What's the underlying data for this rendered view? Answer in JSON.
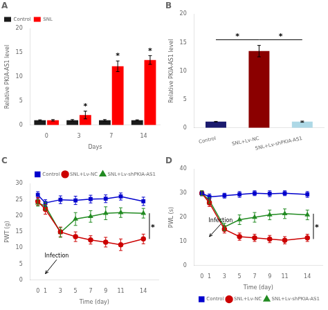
{
  "chart_data": [
    {
      "type": "bar",
      "title": "A",
      "categories": [
        "0",
        "3",
        "7",
        "14"
      ],
      "xlabel": "Days",
      "ylabel": "Relative PKIA-AS1 level",
      "ylim": [
        0,
        20
      ],
      "yticks": [
        0,
        5,
        10,
        15,
        20
      ],
      "grid": false,
      "legend": "upper left",
      "series": [
        {
          "name": "Control",
          "color": "#1a1a1a",
          "values": [
            1.0,
            1.0,
            1.0,
            1.0
          ],
          "errors": [
            0.1,
            0.15,
            0.15,
            0.1
          ]
        },
        {
          "name": "SNL",
          "color": "#ff0000",
          "values": [
            1.0,
            2.1,
            12.2,
            13.5
          ],
          "errors": [
            0.15,
            0.8,
            1.1,
            0.9
          ]
        }
      ],
      "annotations": [
        {
          "text": "*",
          "category": "3",
          "series": "SNL"
        },
        {
          "text": "*",
          "category": "7",
          "series": "SNL"
        },
        {
          "text": "*",
          "category": "14",
          "series": "SNL"
        }
      ]
    },
    {
      "type": "bar",
      "title": "B",
      "categories": [
        "Control",
        "SNL+Lv-NC",
        "SNL+Lv-shPKIA-AS1"
      ],
      "values": [
        1.1,
        13.5,
        1.1
      ],
      "errors": [
        0.05,
        1.0,
        0.1
      ],
      "colors": [
        "#1a1a6e",
        "#8b0000",
        "#add8e6"
      ],
      "ylabel": "Relative PKIA-AS1 level",
      "ylim": [
        0,
        20
      ],
      "yticks": [
        0,
        5,
        10,
        15,
        20
      ],
      "grid": false,
      "annotations": [
        {
          "text": "*",
          "from": "Control",
          "to": "SNL+Lv-NC",
          "y": 15.5
        },
        {
          "text": "*",
          "from": "SNL+Lv-NC",
          "to": "SNL+Lv-shPKIA-AS1",
          "y": 15.5
        }
      ]
    },
    {
      "type": "line",
      "title": "C",
      "x": [
        0,
        1,
        3,
        5,
        7,
        9,
        11,
        14
      ],
      "xlabel": "Time (day)",
      "ylabel": "PWT (g)",
      "xlim": [
        -1,
        16
      ],
      "xticks": [
        0,
        1,
        3,
        5,
        7,
        9,
        11,
        14
      ],
      "ylim": [
        0,
        30
      ],
      "yticks": [
        0,
        5,
        10,
        15,
        20,
        25,
        30
      ],
      "grid": false,
      "legend": "upper right",
      "series": [
        {
          "name": "Control",
          "color": "#0000cd",
          "marker": "square",
          "values": [
            26.5,
            24.0,
            25.0,
            24.8,
            25.2,
            25.3,
            26.0,
            24.5
          ],
          "errors": [
            1.0,
            1.0,
            1.2,
            1.3,
            1.2,
            1.2,
            1.1,
            1.3
          ]
        },
        {
          "name": "SNL+Lv-NC",
          "color": "#cc0000",
          "marker": "circle",
          "values": [
            24.5,
            22.0,
            15.0,
            13.5,
            12.5,
            11.8,
            11.0,
            12.8
          ],
          "errors": [
            1.2,
            1.5,
            1.5,
            1.5,
            1.3,
            1.5,
            1.8,
            1.5
          ]
        },
        {
          "name": "SNL+Lv-shPKIA-AS1",
          "color": "#228b22",
          "marker": "triangle",
          "values": [
            24.0,
            23.0,
            14.8,
            19.0,
            19.8,
            20.8,
            21.0,
            20.8
          ],
          "errors": [
            1.0,
            1.2,
            1.5,
            2.0,
            1.8,
            2.0,
            1.5,
            1.5
          ]
        }
      ],
      "annotations": [
        {
          "text": "Infection",
          "x": 2.5,
          "y": 7,
          "arrow_to": [
            1,
            2
          ]
        },
        {
          "text": "*",
          "x": 14.8,
          "y_from": 12.8,
          "y_to": 20.8
        }
      ]
    },
    {
      "type": "line",
      "title": "D",
      "x": [
        0,
        1,
        3,
        5,
        7,
        9,
        11,
        14
      ],
      "xlabel": "Time (day)",
      "ylabel": "PWL (s)",
      "xlim": [
        -1,
        16
      ],
      "xticks": [
        0,
        1,
        3,
        5,
        7,
        9,
        11,
        14
      ],
      "ylim": [
        0,
        40
      ],
      "yticks": [
        0,
        10,
        20,
        30,
        40
      ],
      "grid": false,
      "legend": "lower right",
      "series": [
        {
          "name": "Control",
          "color": "#0000cd",
          "marker": "square",
          "values": [
            30.0,
            28.5,
            29.0,
            29.5,
            30.0,
            29.8,
            30.0,
            29.5
          ],
          "errors": [
            1.0,
            1.2,
            1.0,
            1.2,
            1.0,
            1.2,
            1.0,
            1.2
          ]
        },
        {
          "name": "SNL+Lv-NC",
          "color": "#cc0000",
          "marker": "circle",
          "values": [
            30.0,
            26.0,
            15.0,
            12.0,
            11.5,
            11.0,
            10.5,
            11.5
          ],
          "errors": [
            1.0,
            1.5,
            1.5,
            1.5,
            1.5,
            1.5,
            1.5,
            1.5
          ]
        },
        {
          "name": "SNL+Lv-shPKIA-AS1",
          "color": "#228b22",
          "marker": "triangle",
          "values": [
            30.0,
            27.0,
            16.0,
            19.0,
            20.0,
            21.0,
            21.5,
            21.0
          ],
          "errors": [
            1.0,
            1.2,
            1.5,
            2.0,
            2.0,
            2.0,
            2.0,
            2.0
          ]
        }
      ],
      "annotations": [
        {
          "text": "Infection",
          "x": 2.5,
          "y": 18,
          "arrow_to": [
            1,
            12
          ]
        },
        {
          "text": "*",
          "x": 14.8,
          "y_from": 11.0,
          "y_to": 21.5
        }
      ]
    }
  ]
}
